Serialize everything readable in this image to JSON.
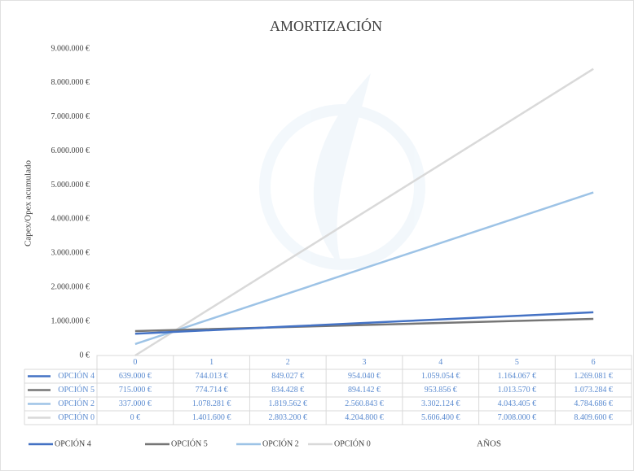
{
  "chart_data": {
    "type": "line",
    "title": "AMORTIZACIÓN",
    "y_label": "Capex/Opex acumulado",
    "x_label": "AÑOS",
    "categories": [
      "0",
      "1",
      "2",
      "3",
      "4",
      "5",
      "6"
    ],
    "series": [
      {
        "name": "OPCIÓN 4",
        "color": "#4472c4",
        "values": [
          639000,
          744013,
          849027,
          954040,
          1059054,
          1164067,
          1269081
        ],
        "value_labels": [
          "639.000 €",
          "744.013 €",
          "849.027 €",
          "954.040 €",
          "1.059.054 €",
          "1.164.067 €",
          "1.269.081 €"
        ]
      },
      {
        "name": "OPCIÓN 5",
        "color": "#767676",
        "values": [
          715000,
          774714,
          834428,
          894142,
          953856,
          1013570,
          1073284
        ],
        "value_labels": [
          "715.000 €",
          "774.714 €",
          "834.428 €",
          "894.142 €",
          "953.856 €",
          "1.013.570 €",
          "1.073.284 €"
        ]
      },
      {
        "name": "OPCIÓN 2",
        "color": "#9dc3e6",
        "values": [
          337000,
          1078281,
          1819562,
          2560843,
          3302124,
          4043405,
          4784686
        ],
        "value_labels": [
          "337.000 €",
          "1.078.281 €",
          "1.819.562 €",
          "2.560.843 €",
          "3.302.124 €",
          "4.043.405 €",
          "4.784.686 €"
        ]
      },
      {
        "name": "OPCIÓN 0",
        "color": "#d9d9d9",
        "values": [
          0,
          1401600,
          2803200,
          4204800,
          5606400,
          7008000,
          8409600
        ],
        "value_labels": [
          "0 €",
          "1.401.600 €",
          "2.803.200 €",
          "4.204.800 €",
          "5.606.400 €",
          "7.008.000 €",
          "8.409.600 €"
        ]
      }
    ],
    "ylim": [
      0,
      9000000
    ],
    "yticks": [
      {
        "value": 0,
        "label": "0 €"
      },
      {
        "value": 1000000,
        "label": "1.000.000 €"
      },
      {
        "value": 2000000,
        "label": "2.000.000 €"
      },
      {
        "value": 3000000,
        "label": "3.000.000 €"
      },
      {
        "value": 4000000,
        "label": "4.000.000 €"
      },
      {
        "value": 5000000,
        "label": "5.000.000 €"
      },
      {
        "value": 6000000,
        "label": "6.000.000 €"
      },
      {
        "value": 7000000,
        "label": "7.000.000 €"
      },
      {
        "value": 8000000,
        "label": "8.000.000 €"
      },
      {
        "value": 9000000,
        "label": "9.000.000 €"
      }
    ],
    "grid": false
  }
}
